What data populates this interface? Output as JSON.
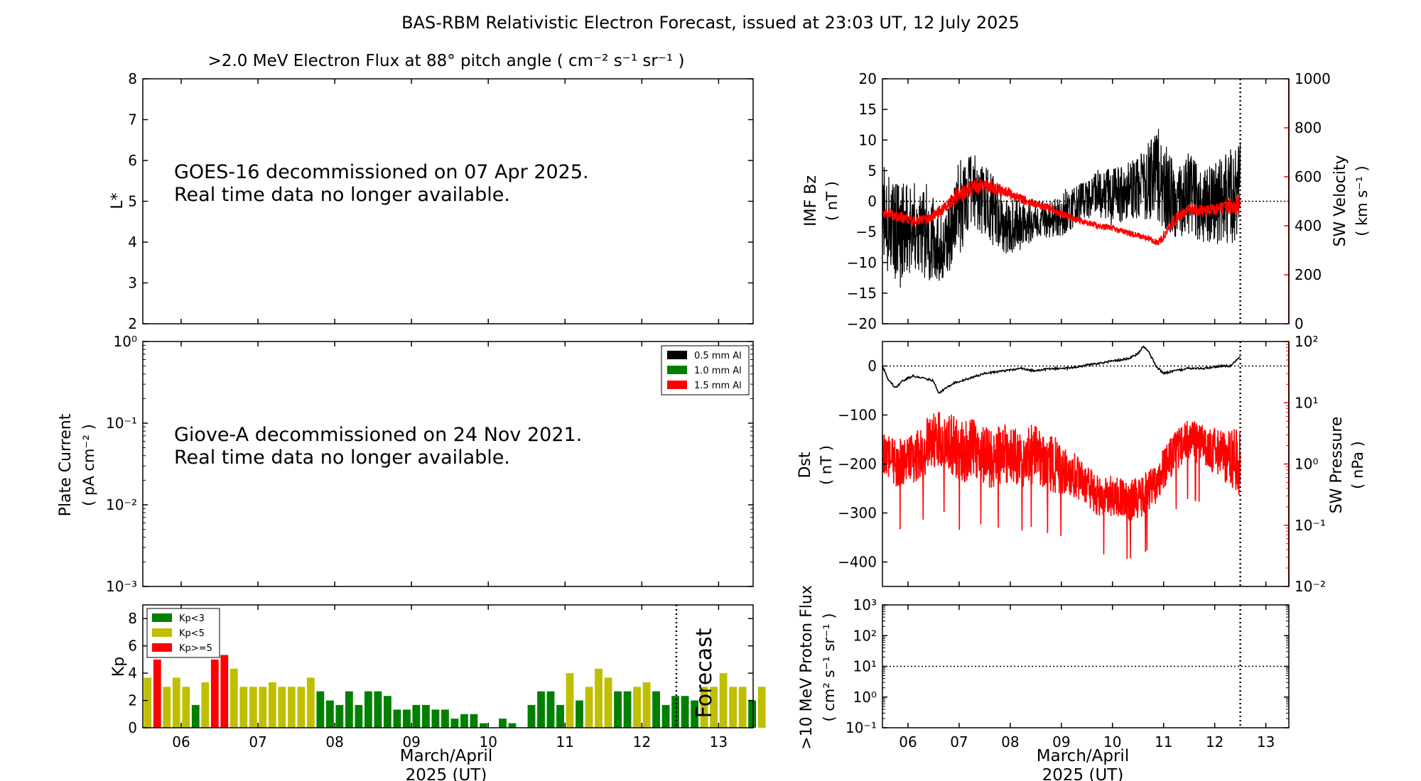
{
  "figure": {
    "title": "BAS-RBM Relativistic Electron Forecast, issued at 23:03 UT, 12 July 2025"
  },
  "colors": {
    "black": "#000000",
    "red": "#ff0000",
    "green": "#008000",
    "yellow": "#bfbf00"
  },
  "chart_data": [
    {
      "id": "electron-flux",
      "type": "heatmap",
      "title": ">2.0 MeV Electron Flux at 88° pitch angle ( cm⁻² s⁻¹ sr⁻¹ )",
      "ylabel": "L*",
      "ylim": [
        2,
        8
      ],
      "yticks": [
        "2",
        "3",
        "4",
        "5",
        "6",
        "7",
        "8"
      ],
      "message": [
        "GOES-16 decommissioned on 07 Apr 2025.",
        "Real time data no longer available."
      ],
      "xlim": [
        5.5,
        13.45
      ]
    },
    {
      "id": "plate-current",
      "type": "line",
      "ylabel": "Plate Current",
      "ylabel_units": "( pA cm⁻² )",
      "yscale": "log",
      "ylim": [
        0.001,
        1
      ],
      "yticks": [
        "10⁻³",
        "10⁻²",
        "10⁻¹",
        "10⁰"
      ],
      "legend": [
        "0.5 mm Al",
        "1.0 mm Al",
        "1.5 mm Al"
      ],
      "legend_colors": [
        "#000000",
        "#008000",
        "#ff0000"
      ],
      "legend_position": "top-right",
      "message": [
        "Giove-A decommissioned on 24 Nov 2021.",
        "Real time data no longer available."
      ]
    },
    {
      "id": "kp-index",
      "type": "bar",
      "ylabel": "Kp",
      "ylim": [
        0,
        9
      ],
      "yticks": [
        "0",
        "2",
        "4",
        "6",
        "8"
      ],
      "xlim": [
        5.5,
        13.45
      ],
      "xticks": [
        "06",
        "07",
        "08",
        "09",
        "10",
        "11",
        "12",
        "13"
      ],
      "xlabel": "March/April",
      "xlabel2": "2025 (UT)",
      "forecast_label": "Forecast",
      "forecast_at": 12.45,
      "legend": [
        "Kp<3",
        "Kp<5",
        "Kp>=5"
      ],
      "legend_colors": [
        "#008000",
        "#bfbf00",
        "#ff0000"
      ],
      "legend_position": "top-left",
      "bar_width_days": 0.1,
      "values": [
        3.67,
        5.0,
        3.0,
        3.67,
        3.0,
        1.67,
        3.33,
        5.0,
        5.33,
        4.33,
        3.0,
        3.0,
        3.0,
        3.33,
        3.0,
        3.0,
        3.0,
        3.67,
        2.67,
        2.0,
        1.67,
        2.67,
        1.67,
        2.67,
        2.67,
        2.33,
        1.33,
        1.33,
        1.67,
        1.67,
        1.33,
        1.33,
        0.67,
        1.0,
        1.0,
        0.33,
        0.0,
        0.67,
        0.33,
        0.0,
        1.67,
        2.67,
        2.67,
        1.67,
        4.0,
        2.0,
        3.0,
        4.33,
        3.67,
        2.67,
        2.67,
        3.0,
        3.33,
        2.67,
        1.67,
        2.33,
        2.33,
        2.0,
        3.0,
        3.0,
        4.0,
        3.0,
        3.0,
        2.0,
        3.0
      ]
    },
    {
      "id": "imf-bz-sw-velocity",
      "type": "line",
      "ylabel": "IMF Bz",
      "ylabel_units": "( nT )",
      "ylim": [
        -20,
        20
      ],
      "yticks": [
        "−20",
        "−15",
        "−10",
        "−5",
        "0",
        "5",
        "10",
        "15",
        "20"
      ],
      "y2label": "SW Velocity",
      "y2label_units": "( km s⁻¹ )",
      "y2lim": [
        0,
        1000
      ],
      "y2ticks": [
        "0",
        "200",
        "400",
        "600",
        "800",
        "1000"
      ],
      "xlim": [
        5.5,
        13.45
      ],
      "now_at": 12.5,
      "series": [
        {
          "name": "",
          "axis": "left",
          "color": "#000000",
          "x": [
            5.5,
            5.8,
            6.1,
            6.4,
            6.7,
            7.0,
            7.3,
            7.6,
            7.9,
            8.2,
            8.5,
            8.8,
            9.1,
            9.4,
            9.7,
            10.0,
            10.3,
            10.6,
            10.9,
            11.2,
            11.5,
            11.8,
            12.1,
            12.5
          ],
          "y": [
            -2.0,
            -6.0,
            -4.0,
            -5.0,
            -8.0,
            -1.0,
            2.0,
            -1.0,
            -4.0,
            -4.0,
            -3.0,
            -3.0,
            -1.5,
            0.0,
            1.5,
            0.5,
            1.5,
            2.5,
            4.5,
            0.0,
            1.0,
            -1.0,
            0.0,
            2.0
          ],
          "amp": [
            8,
            9,
            7,
            8,
            5,
            8,
            6,
            6,
            5,
            4,
            3,
            3,
            4,
            3,
            4,
            5,
            5,
            6,
            8,
            6,
            7,
            6,
            7,
            9
          ]
        },
        {
          "name": "",
          "axis": "right",
          "color": "#ff0000",
          "x": [
            5.5,
            5.8,
            6.1,
            6.4,
            6.7,
            7.0,
            7.3,
            7.6,
            7.9,
            8.2,
            8.5,
            8.8,
            9.1,
            9.4,
            9.7,
            10.0,
            10.3,
            10.6,
            10.9,
            11.2,
            11.5,
            11.8,
            12.1,
            12.5
          ],
          "y": [
            450,
            440,
            420,
            430,
            470,
            530,
            560,
            560,
            540,
            510,
            490,
            470,
            440,
            420,
            400,
            390,
            370,
            355,
            330,
            420,
            470,
            460,
            470,
            490
          ],
          "amp": [
            20,
            25,
            20,
            20,
            25,
            40,
            35,
            30,
            25,
            20,
            15,
            15,
            15,
            12,
            12,
            12,
            12,
            12,
            15,
            25,
            25,
            25,
            25,
            40
          ]
        }
      ]
    },
    {
      "id": "dst-sw-pressure",
      "type": "line",
      "ylabel": "Dst",
      "ylabel_units": "( nT )",
      "ylim": [
        -450,
        50
      ],
      "yticks": [
        "−400",
        "−300",
        "−200",
        "−100",
        "0"
      ],
      "y2label": "SW Pressure",
      "y2label_units": "( nPa )",
      "y2scale": "log",
      "y2lim": [
        0.01,
        100
      ],
      "y2ticks": [
        "10⁻²",
        "10⁻¹",
        "10⁰",
        "10¹",
        "10²"
      ],
      "xlim": [
        5.5,
        13.45
      ],
      "now_at": 12.5,
      "series": [
        {
          "name": "",
          "axis": "left",
          "color": "#000000",
          "x": [
            5.5,
            5.6,
            5.75,
            5.9,
            6.1,
            6.3,
            6.5,
            6.6,
            6.75,
            6.9,
            7.2,
            7.5,
            7.9,
            8.2,
            8.5,
            8.8,
            9.1,
            9.4,
            9.7,
            10.0,
            10.3,
            10.5,
            10.6,
            10.7,
            10.85,
            11.0,
            11.2,
            11.5,
            11.8,
            12.1,
            12.3,
            12.5
          ],
          "y": [
            0,
            -25,
            -45,
            -30,
            -20,
            -25,
            -30,
            -55,
            -45,
            -35,
            -25,
            -15,
            -10,
            -5,
            -10,
            -5,
            -5,
            0,
            5,
            10,
            15,
            25,
            40,
            30,
            0,
            -15,
            -10,
            -5,
            -5,
            0,
            0,
            20
          ]
        },
        {
          "name": "",
          "axis": "right",
          "color": "#ff0000",
          "x": [
            5.5,
            5.8,
            6.1,
            6.4,
            6.7,
            7.0,
            7.3,
            7.6,
            7.9,
            8.2,
            8.5,
            8.8,
            9.1,
            9.4,
            9.7,
            10.0,
            10.3,
            10.6,
            10.9,
            11.2,
            11.5,
            11.8,
            12.1,
            12.5
          ],
          "y": [
            1.5,
            1.0,
            1.2,
            2.0,
            2.5,
            1.5,
            1.8,
            1.2,
            1.5,
            1.2,
            1.5,
            1.0,
            0.8,
            0.5,
            0.3,
            0.3,
            0.25,
            0.3,
            0.5,
            1.5,
            2.5,
            2.0,
            1.5,
            1.0
          ],
          "amp": [
            3,
            4,
            4,
            5,
            5,
            6,
            5,
            5,
            5,
            5,
            5,
            5,
            4,
            3,
            3,
            3,
            3,
            3,
            3,
            3,
            3,
            3,
            4,
            6
          ]
        }
      ]
    },
    {
      "id": "proton-flux",
      "type": "line",
      "ylabel": ">10 MeV Proton Flux",
      "ylabel_units": "( cm² s⁻¹ sr⁻¹ )",
      "yscale": "log",
      "ylim": [
        0.1,
        1000
      ],
      "yticks": [
        "10⁻¹",
        "10⁰",
        "10¹",
        "10²",
        "10³"
      ],
      "threshold": 10,
      "xlim": [
        5.5,
        13.45
      ],
      "xticks": [
        "06",
        "07",
        "08",
        "09",
        "10",
        "11",
        "12",
        "13"
      ],
      "xlabel": "March/April",
      "xlabel2": "2025 (UT)",
      "now_at": 12.5
    }
  ]
}
